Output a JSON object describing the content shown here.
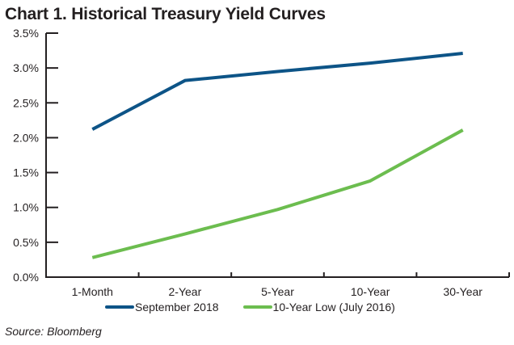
{
  "title": "Chart 1. Historical Treasury Yield Curves",
  "source": "Source: Bloomberg",
  "colors": {
    "september_2018": "#0d5487",
    "july_2016": "#6cbd4f",
    "axis": "#231f20"
  },
  "chart_data": {
    "type": "line",
    "title": "Chart 1. Historical Treasury Yield Curves",
    "xlabel": "",
    "ylabel": "",
    "categories": [
      "1-Month",
      "2-Year",
      "5-Year",
      "10-Year",
      "30-Year"
    ],
    "ylim": [
      0,
      3.5
    ],
    "yticks": [
      "0.0%",
      "0.5%",
      "1.0%",
      "1.5%",
      "2.0%",
      "2.5%",
      "3.0%",
      "3.5%"
    ],
    "grid": false,
    "legend_position": "bottom",
    "series": [
      {
        "name": "September 2018",
        "color": "#0d5487",
        "values": [
          2.12,
          2.82,
          2.95,
          3.07,
          3.21
        ]
      },
      {
        "name": "10-Year Low (July 2016)",
        "color": "#6cbd4f",
        "values": [
          0.28,
          0.62,
          0.97,
          1.38,
          2.11
        ]
      }
    ]
  },
  "legend": [
    {
      "label": "September 2018",
      "color": "#0d5487"
    },
    {
      "label": "10-Year Low (July 2016)",
      "color": "#6cbd4f"
    }
  ]
}
